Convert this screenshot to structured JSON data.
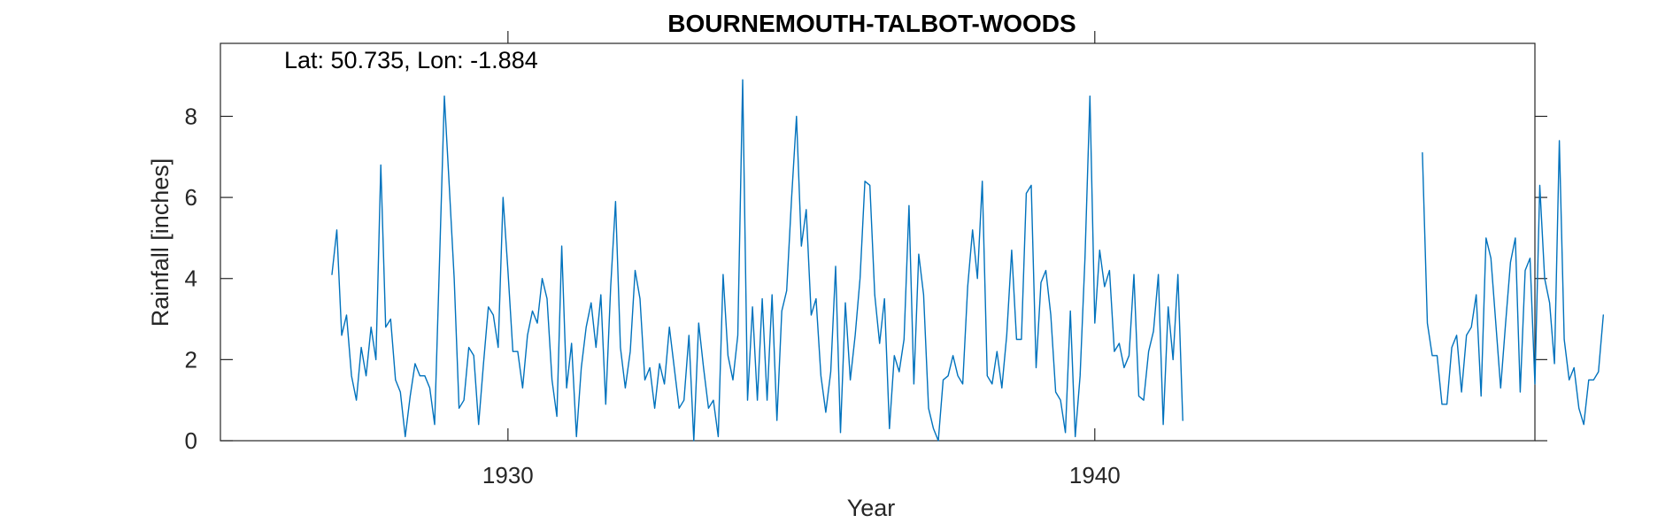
{
  "chart_data": {
    "type": "line",
    "title": "BOURNEMOUTH-TALBOT-WOODS",
    "annotation": "Lat: 50.735, Lon: -1.884",
    "xlabel": "Year",
    "ylabel": "Rainfall [inches]",
    "xlim": [
      1925.1,
      1947.5
    ],
    "ylim": [
      0,
      9.8
    ],
    "xticks": [
      1930,
      1940
    ],
    "yticks": [
      0,
      2,
      4,
      6,
      8
    ],
    "grid": false,
    "series": [
      {
        "color": "#0072BD",
        "start_year": 1927,
        "start_month": 1,
        "values": [
          4.1,
          5.2,
          2.6,
          3.1,
          1.6,
          1.0,
          2.3,
          1.6,
          2.8,
          2.0,
          6.8,
          2.8,
          3.0,
          1.5,
          1.2,
          0.1,
          1.1,
          1.9,
          1.6,
          1.6,
          1.3,
          0.4,
          4.4,
          8.5,
          6.3,
          4.0,
          0.8,
          1.0,
          2.3,
          2.1,
          0.4,
          1.9,
          3.3,
          3.1,
          2.3,
          6.0,
          4.2,
          2.2,
          2.2,
          1.3,
          2.6,
          3.2,
          2.9,
          4.0,
          3.5,
          1.5,
          0.6,
          4.8,
          1.3,
          2.4,
          0.1,
          1.8,
          2.8,
          3.4,
          2.3,
          3.6,
          0.9,
          3.8,
          5.9,
          2.3,
          1.3,
          2.2,
          4.2,
          3.5,
          1.5,
          1.8,
          0.8,
          1.9,
          1.4,
          2.8,
          1.8,
          0.8,
          1.0,
          2.6,
          0.0,
          2.9,
          1.8,
          0.8,
          1.0,
          0.1,
          4.1,
          2.1,
          1.5,
          2.6,
          8.9,
          1.0,
          3.3,
          1.0,
          3.5,
          1.0,
          3.6,
          0.5,
          3.2,
          3.7,
          6.0,
          8.0,
          4.8,
          5.7,
          3.1,
          3.5,
          1.6,
          0.7,
          1.7,
          4.3,
          0.2,
          3.4,
          1.5,
          2.6,
          4.0,
          6.4,
          6.3,
          3.6,
          2.4,
          3.5,
          0.3,
          2.1,
          1.7,
          2.5,
          5.8,
          1.4,
          4.6,
          3.6,
          0.8,
          0.3,
          0.0,
          1.5,
          1.6,
          2.1,
          1.6,
          1.4,
          3.8,
          5.2,
          4.0,
          6.4,
          1.6,
          1.4,
          2.2,
          1.3,
          2.6,
          4.7,
          2.5,
          2.5,
          6.1,
          6.3,
          1.8,
          3.9,
          4.2,
          3.1,
          1.2,
          1.0,
          0.2,
          3.2,
          0.1,
          1.6,
          4.5,
          8.5,
          2.9,
          4.7,
          3.8,
          4.2,
          2.2,
          2.4,
          1.8,
          2.1,
          4.1,
          1.1,
          1.0,
          2.2,
          2.7,
          4.1,
          0.4,
          3.3,
          2.0,
          4.1,
          0.5,
          null,
          null,
          null,
          null,
          null,
          null,
          null,
          null,
          null,
          null,
          null,
          null,
          null,
          null,
          null,
          null,
          null,
          null,
          null,
          null,
          null,
          null,
          null,
          null,
          null,
          null,
          null,
          null,
          null,
          null,
          null,
          null,
          null,
          null,
          null,
          null,
          null,
          null,
          null,
          null,
          null,
          null,
          null,
          null,
          null,
          null,
          null,
          null,
          7.1,
          2.9,
          2.1,
          2.1,
          0.9,
          0.9,
          2.3,
          2.6,
          1.2,
          2.6,
          2.8,
          3.6,
          1.1,
          5.0,
          4.5,
          2.9,
          1.3,
          2.9,
          4.4,
          5.0,
          1.2,
          4.2,
          4.5,
          1.4,
          6.3,
          4.0,
          3.4,
          1.9,
          7.4,
          2.5,
          1.5,
          1.8,
          0.8,
          0.4,
          1.5,
          1.5,
          1.7,
          3.1
        ]
      }
    ]
  }
}
